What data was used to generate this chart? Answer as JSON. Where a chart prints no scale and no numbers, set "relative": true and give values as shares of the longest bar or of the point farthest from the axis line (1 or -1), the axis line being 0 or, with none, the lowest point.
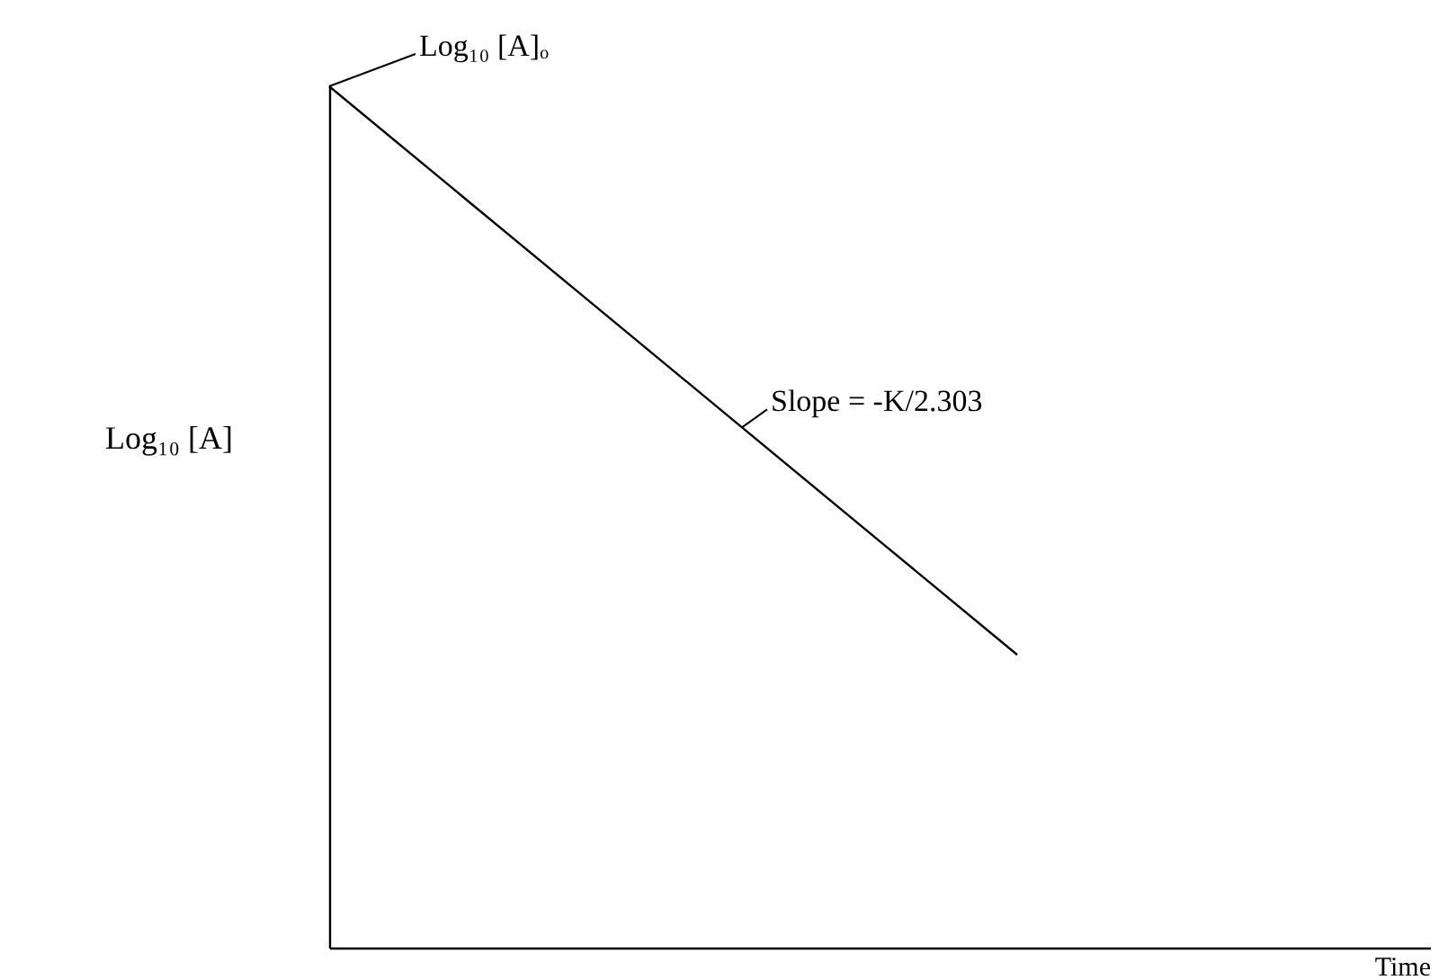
{
  "chart_data": {
    "type": "line",
    "relative": true,
    "xlabel": "Time",
    "ylabel": "Log₁₀ [A]",
    "categories": [
      null,
      null,
      null,
      null,
      null,
      null,
      null,
      null,
      null
    ],
    "series": [
      {
        "color": "#000000",
        "values": [
          1,
          0.868,
          0.736,
          0.604,
          0.472,
          0.34,
          null,
          null,
          null
        ]
      }
    ],
    "annotations": [
      "Log₁₀ [A]ₒ",
      "Slope = -K/2.303"
    ],
    "grid": false,
    "marker": "none",
    "line_style": "solid"
  }
}
